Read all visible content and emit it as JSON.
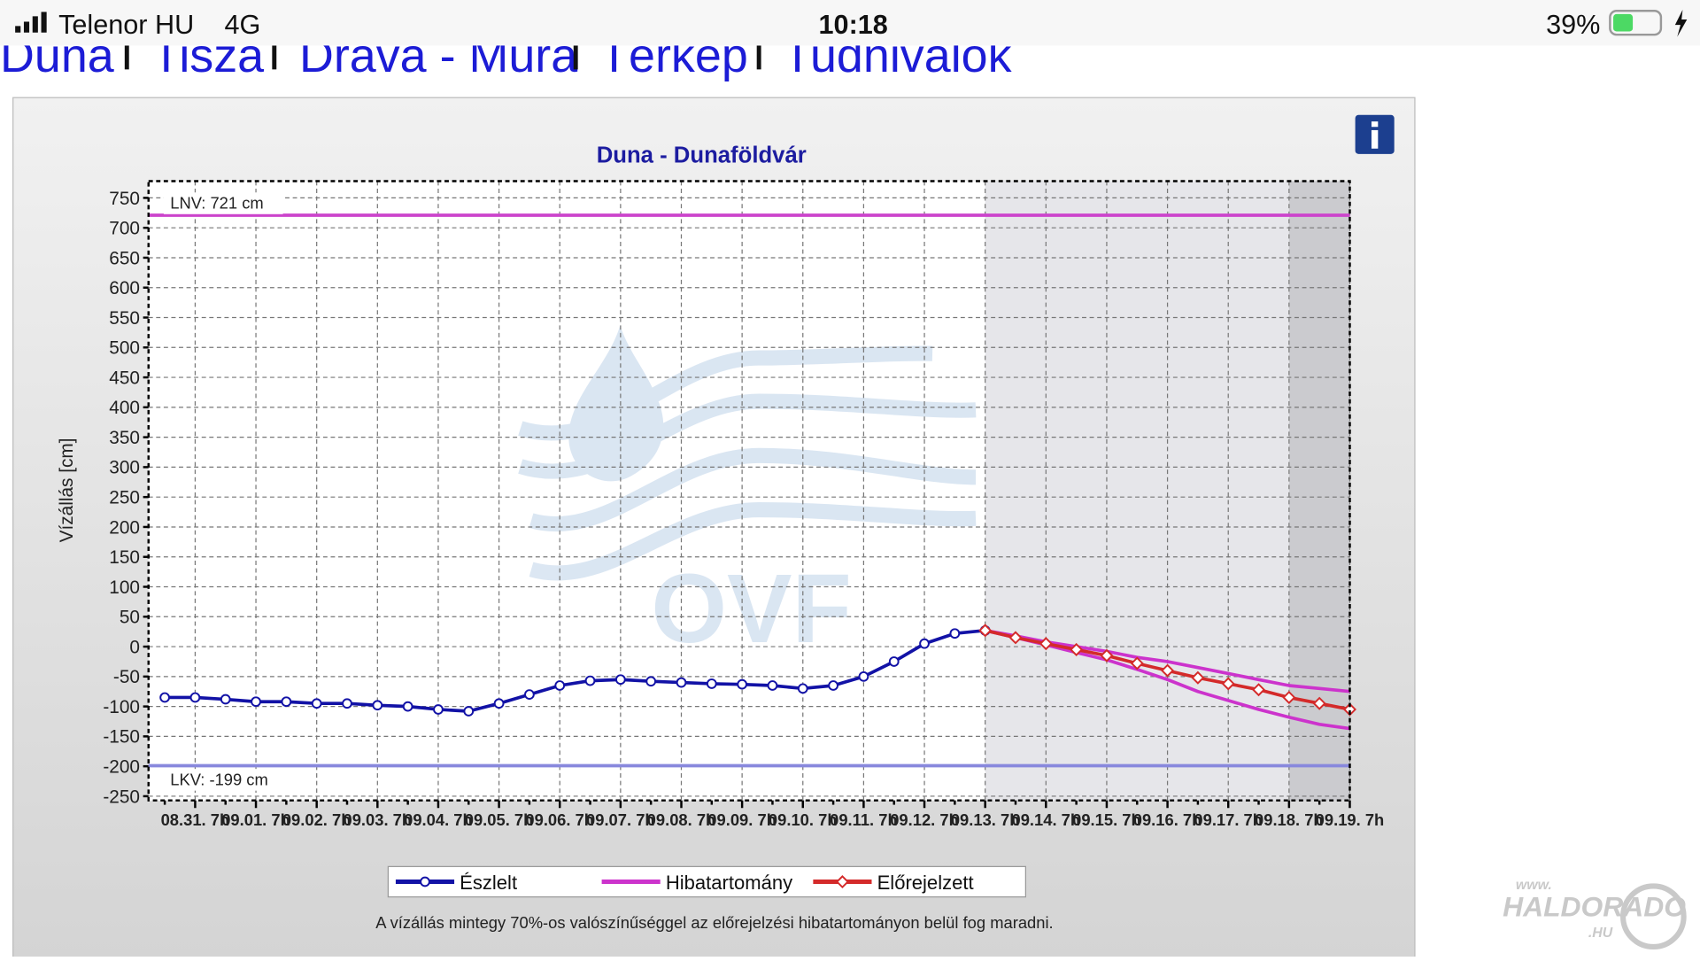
{
  "status_bar": {
    "carrier": "Telenor HU",
    "network": "4G",
    "time": "10:18",
    "battery": "39%"
  },
  "nav": [
    "Duna",
    "Tisza",
    "Dráva - Mura",
    "Térkép",
    "Tudnivalók"
  ],
  "watermark": {
    "logo": "OVF",
    "site_top": "www.",
    "site_main": "HALDORADO",
    "site_bottom": ".HU"
  },
  "chart_data": {
    "type": "line",
    "title": "Duna - Dunaföldvár",
    "y_label": "Vízállás [cm]",
    "footnote": "A vízállás mintegy 70%-os valószínűséggel az előrejelzési hibatartományon belül fog maradni.",
    "categories": [
      null,
      "08.31. 7h",
      null,
      "09.01. 7h",
      null,
      "09.02. 7h",
      null,
      "09.03. 7h",
      null,
      "09.04. 7h",
      null,
      "09.05. 7h",
      null,
      "09.06. 7h",
      null,
      "09.07. 7h",
      null,
      "09.08. 7h",
      null,
      "09.09. 7h",
      null,
      "09.10. 7h",
      null,
      "09.11. 7h",
      null,
      "09.12. 7h",
      null,
      "09.13. 7h",
      null,
      "09.14. 7h",
      null,
      "09.15. 7h",
      null,
      "09.16. 7h",
      null,
      "09.17. 7h",
      null,
      "09.18. 7h",
      null,
      "09.19. 7h"
    ],
    "series": [
      {
        "name": "Észlelt",
        "color": "#1212a6",
        "marker": "circle",
        "values": [
          -85,
          -85,
          -88,
          -92,
          -92,
          -95,
          -95,
          -98,
          -100,
          -105,
          -108,
          -95,
          -80,
          -65,
          -57,
          -55,
          -58,
          -60,
          -62,
          -63,
          -65,
          -70,
          -65,
          -50,
          -25,
          5,
          22,
          27,
          null,
          null,
          null,
          null,
          null,
          null,
          null,
          null,
          null,
          null,
          null,
          null
        ]
      },
      {
        "name": "Hibatartomány",
        "color": "#cc33cc",
        "type": "band",
        "upper": [
          null,
          null,
          null,
          null,
          null,
          null,
          null,
          null,
          null,
          null,
          null,
          null,
          null,
          null,
          null,
          null,
          null,
          null,
          null,
          null,
          null,
          null,
          null,
          null,
          null,
          null,
          null,
          27,
          18,
          8,
          0,
          -8,
          -18,
          -25,
          -35,
          -45,
          -55,
          -65,
          -70,
          -75
        ],
        "lower": [
          null,
          null,
          null,
          null,
          null,
          null,
          null,
          null,
          null,
          null,
          null,
          null,
          null,
          null,
          null,
          null,
          null,
          null,
          null,
          null,
          null,
          null,
          null,
          null,
          null,
          null,
          null,
          27,
          15,
          3,
          -10,
          -22,
          -38,
          -55,
          -75,
          -90,
          -105,
          -118,
          -130,
          -137
        ]
      },
      {
        "name": "Előrejelzett",
        "color": "#d42a2a",
        "marker": "diamond",
        "values": [
          null,
          null,
          null,
          null,
          null,
          null,
          null,
          null,
          null,
          null,
          null,
          null,
          null,
          null,
          null,
          null,
          null,
          null,
          null,
          null,
          null,
          null,
          null,
          null,
          null,
          null,
          null,
          27,
          15,
          5,
          -5,
          -15,
          -28,
          -40,
          -52,
          -62,
          -72,
          -85,
          -95,
          -105
        ]
      }
    ],
    "reference_lines": [
      {
        "label": "LNV: 721 cm",
        "value": 721,
        "color": "#cc44cc"
      },
      {
        "label": "LKV: -199 cm",
        "value": -199,
        "color": "#8888dd"
      }
    ],
    "ylim": [
      -257,
      778
    ],
    "yticks": [
      -250,
      -200,
      -150,
      -100,
      -50,
      0,
      50,
      100,
      150,
      200,
      250,
      300,
      350,
      400,
      450,
      500,
      550,
      600,
      650,
      700,
      750
    ],
    "grid": true
  }
}
